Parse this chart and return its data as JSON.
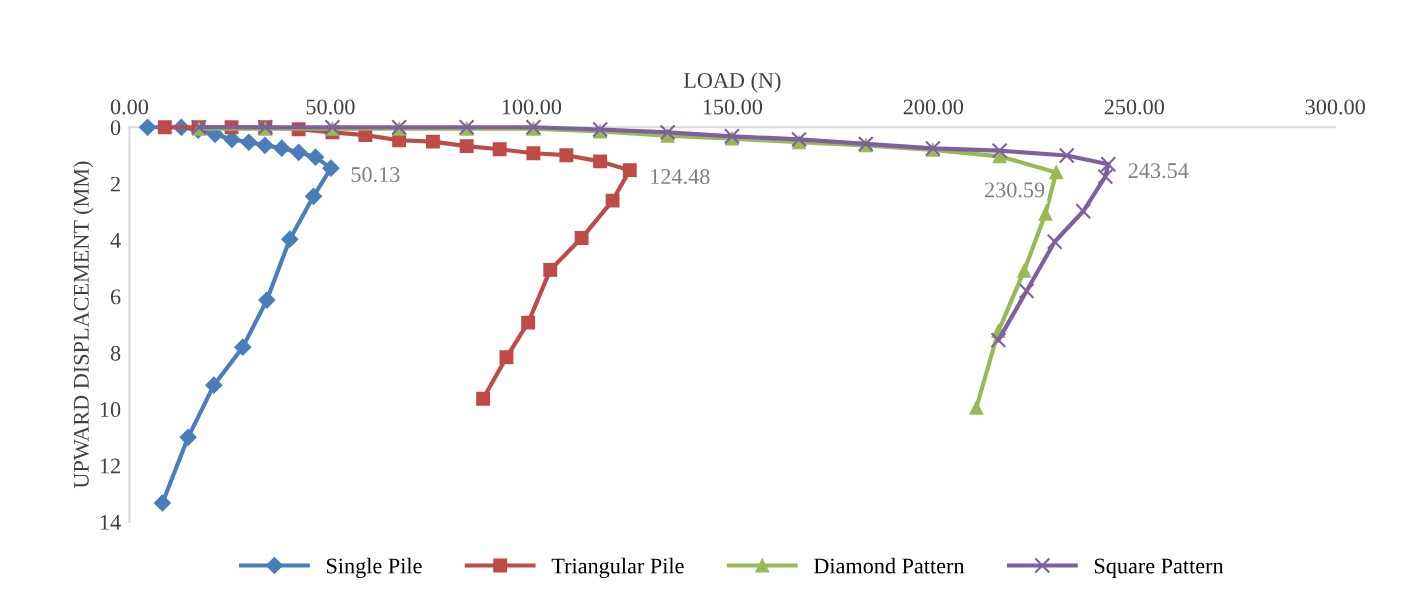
{
  "chart_data": {
    "type": "line",
    "xlabel": "LOAD (N)",
    "ylabel": "UPWARD DISPLACEMENT (MM)",
    "xlim": [
      0,
      300
    ],
    "xticks": [
      {
        "value": 0,
        "label": "0.00"
      },
      {
        "value": 50,
        "label": "50.00"
      },
      {
        "value": 100,
        "label": "100.00"
      },
      {
        "value": 150,
        "label": "150.00"
      },
      {
        "value": 200,
        "label": "200.00"
      },
      {
        "value": 250,
        "label": "250.00"
      },
      {
        "value": 300,
        "label": "300.00"
      }
    ],
    "ylim": [
      14,
      0
    ],
    "yticks": [
      0,
      2,
      4,
      6,
      8,
      10,
      12,
      14
    ],
    "grid": false,
    "legend": "bottom",
    "series": [
      {
        "name": "Single Pile",
        "color": "#4a7ebb",
        "marker": "diamond",
        "x": [
          4.5,
          12.9,
          17.1,
          21.3,
          25.5,
          29.7,
          33.7,
          37.9,
          42.1,
          46.3,
          50.13,
          45.8,
          39.9,
          34.2,
          28.2,
          21.0,
          14.6,
          8.2
        ],
        "values": [
          0,
          0,
          0.1,
          0.25,
          0.43,
          0.53,
          0.64,
          0.74,
          0.89,
          1.06,
          1.45,
          2.45,
          3.97,
          6.13,
          7.8,
          9.15,
          11.0,
          13.33
        ]
      },
      {
        "name": "Triangular Pile",
        "color": "#be4b48",
        "marker": "square",
        "x": [
          8.8,
          17.2,
          25.4,
          33.8,
          42.1,
          50.5,
          58.7,
          67.1,
          75.5,
          83.9,
          92.1,
          100.5,
          108.7,
          117.1,
          124.48,
          120.2,
          112.5,
          104.7,
          99.2,
          93.8,
          88.0
        ],
        "values": [
          0,
          0,
          0,
          0,
          0.07,
          0.18,
          0.28,
          0.46,
          0.51,
          0.67,
          0.78,
          0.92,
          0.99,
          1.21,
          1.52,
          2.6,
          3.93,
          5.06,
          6.93,
          8.16,
          9.63
        ]
      },
      {
        "name": "Diamond Pattern",
        "color": "#98b954",
        "marker": "triangle",
        "x": [
          17.3,
          33.8,
          50.5,
          67.1,
          83.9,
          100.5,
          117.1,
          133.9,
          149.9,
          166.6,
          183.2,
          199.9,
          216.5,
          230.59,
          227.9,
          222.6,
          216.2,
          210.7
        ],
        "values": [
          0.05,
          0.05,
          0.05,
          0.05,
          0.05,
          0.05,
          0.15,
          0.3,
          0.4,
          0.53,
          0.64,
          0.8,
          1.03,
          1.6,
          3.07,
          5.09,
          7.23,
          9.95
        ]
      },
      {
        "name": "Square Pattern",
        "color": "#7d60a0",
        "marker": "cross",
        "x": [
          17.3,
          33.8,
          50.5,
          67.1,
          83.9,
          100.5,
          117.1,
          133.9,
          149.9,
          166.6,
          183.2,
          199.9,
          216.5,
          233.2,
          243.54,
          242.8,
          237.3,
          230.2,
          223.2,
          216.2
        ],
        "values": [
          0,
          0,
          0,
          0,
          0,
          0,
          0.08,
          0.18,
          0.32,
          0.43,
          0.59,
          0.75,
          0.83,
          1.0,
          1.31,
          1.75,
          2.98,
          4.06,
          5.81,
          7.55
        ]
      }
    ],
    "annotations": [
      {
        "text": "50.13",
        "x": 50.13,
        "y": 1.45
      },
      {
        "text": "124.48",
        "x": 124.48,
        "y": 1.52
      },
      {
        "text": "230.59",
        "x": 230.59,
        "y": 1.6
      },
      {
        "text": "243.54",
        "x": 243.54,
        "y": 1.31
      }
    ]
  }
}
